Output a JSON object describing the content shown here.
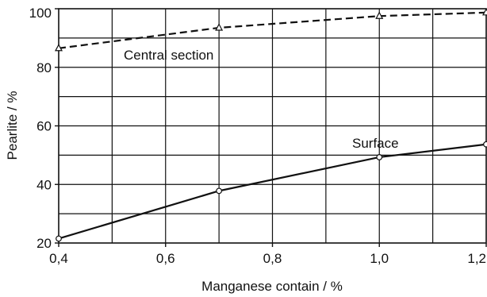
{
  "chart_data": {
    "type": "line",
    "title": "",
    "xlabel": "Manganese contain / %",
    "ylabel": "Pearlite / %",
    "xlim": [
      0.4,
      1.2
    ],
    "ylim": [
      20,
      100
    ],
    "x_ticks": [
      "0,4",
      "0,6",
      "0,8",
      "1,0",
      "1,2"
    ],
    "x_tick_values": [
      0.4,
      0.6,
      0.8,
      1.0,
      1.2
    ],
    "y_ticks": [
      "20",
      "40",
      "60",
      "80",
      "100"
    ],
    "y_tick_values": [
      20,
      40,
      60,
      80,
      100
    ],
    "x_grid_values": [
      0.5,
      0.6,
      0.7,
      0.8,
      0.9,
      1.0,
      1.1
    ],
    "y_grid_values": [
      30,
      40,
      50,
      60,
      70,
      80,
      90
    ],
    "grid": true,
    "legend": "none",
    "series": [
      {
        "name": "Central section",
        "line_style": "dashed",
        "marker": "triangle",
        "x": [
          0.4,
          0.7,
          1.0,
          1.2
        ],
        "y": [
          86.5,
          93.5,
          97.5,
          98.7
        ]
      },
      {
        "name": "Surface",
        "line_style": "solid",
        "marker": "circle",
        "x": [
          0.4,
          0.7,
          1.0,
          1.2
        ],
        "y": [
          21.5,
          37.8,
          49.3,
          53.7
        ]
      }
    ]
  }
}
